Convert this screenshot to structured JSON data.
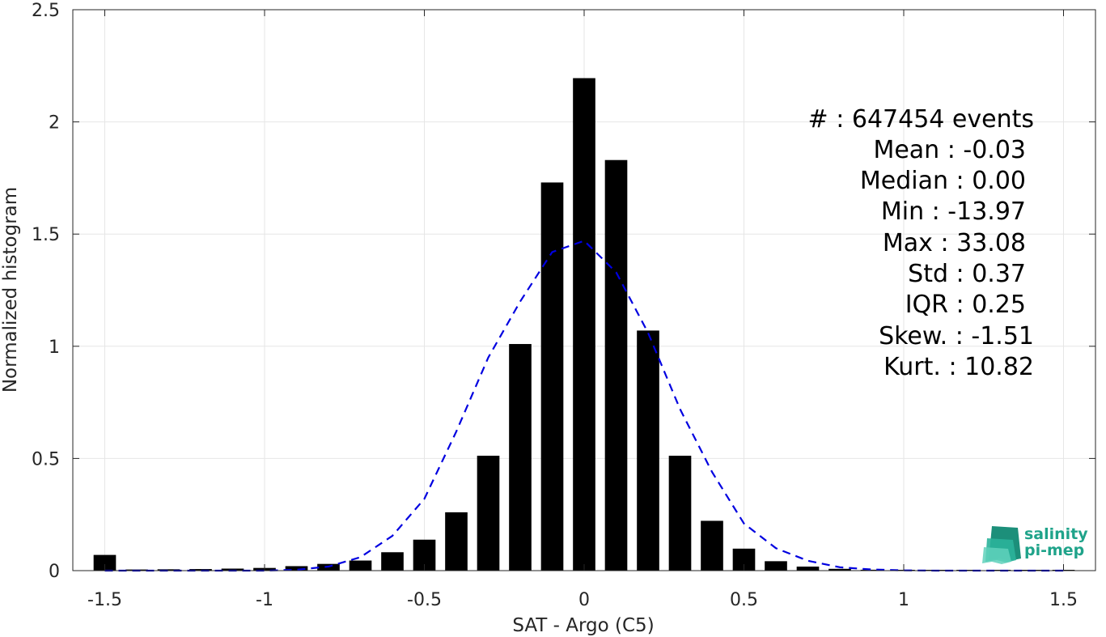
{
  "chart_data": {
    "type": "bar",
    "xlabel": "SAT - Argo (C5)",
    "ylabel": "Normalized histogram",
    "xlim": [
      -1.6,
      1.6
    ],
    "ylim": [
      0,
      2.5
    ],
    "grid": true,
    "xticks": [
      -1.5,
      -1,
      -0.5,
      0,
      0.5,
      1,
      1.5
    ],
    "xtick_labels": [
      "-1.5",
      "-1",
      "-0.5",
      "0",
      "0.5",
      "1",
      "1.5"
    ],
    "yticks": [
      0,
      0.5,
      1,
      1.5,
      2,
      2.5
    ],
    "ytick_labels": [
      "0",
      "0.5",
      "1",
      "1.5",
      "2",
      "2.5"
    ],
    "x": [
      -1.5,
      -1.4,
      -1.3,
      -1.2,
      -1.1,
      -1.0,
      -0.9,
      -0.8,
      -0.7,
      -0.6,
      -0.5,
      -0.4,
      -0.3,
      -0.2,
      -0.1,
      0.0,
      0.1,
      0.2,
      0.3,
      0.4,
      0.5,
      0.6,
      0.7,
      0.8,
      0.9,
      1.0,
      1.1,
      1.2,
      1.3,
      1.4,
      1.5
    ],
    "values": [
      0.07,
      0.005,
      0.006,
      0.007,
      0.009,
      0.012,
      0.02,
      0.03,
      0.045,
      0.082,
      0.138,
      0.26,
      0.512,
      1.01,
      1.73,
      2.195,
      1.83,
      1.07,
      0.512,
      0.222,
      0.098,
      0.042,
      0.018,
      0.008,
      0.004,
      0.002,
      0.001,
      0.001,
      0.001,
      0.001,
      0.001
    ],
    "bar_color": "#000000",
    "fit_curve": {
      "style": "dashed",
      "color": "#0000e0",
      "x": [
        -1.5,
        -1.4,
        -1.3,
        -1.2,
        -1.1,
        -1.0,
        -0.9,
        -0.8,
        -0.7,
        -0.6,
        -0.5,
        -0.4,
        -0.3,
        -0.2,
        -0.1,
        0.0,
        0.1,
        0.2,
        0.3,
        0.4,
        0.5,
        0.6,
        0.7,
        0.8,
        0.9,
        1.0,
        1.1,
        1.2,
        1.3,
        1.4,
        1.5
      ],
      "y": [
        0.0,
        0.0,
        0.0,
        0.0,
        0.0,
        0.0,
        0.004,
        0.018,
        0.06,
        0.155,
        0.32,
        0.62,
        0.95,
        1.2,
        1.42,
        1.47,
        1.33,
        1.06,
        0.72,
        0.44,
        0.21,
        0.1,
        0.044,
        0.015,
        0.005,
        0.001,
        0.0,
        0.0,
        0.0,
        0.0,
        0.0
      ]
    }
  },
  "stats": [
    "#  : 647454 events",
    "Mean : -0.03",
    "Median : 0.00",
    "Min : -13.97",
    "Max : 33.08",
    "Std : 0.37",
    "IQR : 0.25",
    "Skew. : -1.51",
    "Kurt. : 10.82"
  ],
  "logo": {
    "line1": "salinity",
    "line2": "pi-mep",
    "color": "#1fa38a"
  }
}
